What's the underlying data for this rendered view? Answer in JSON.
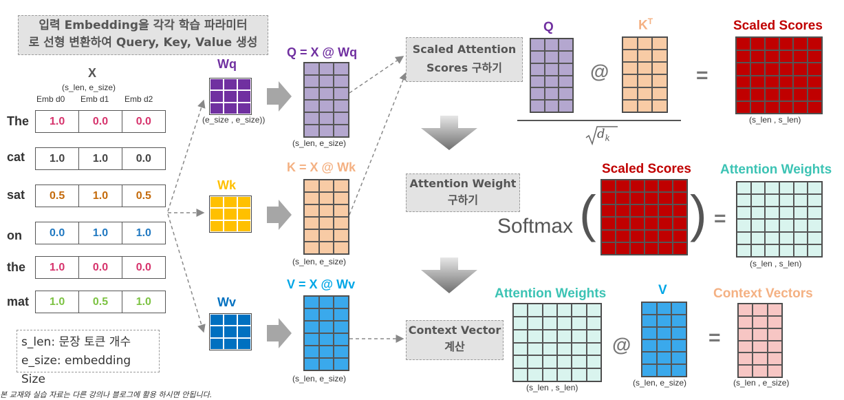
{
  "intro": {
    "line1": "입력 Embedding을 각각 학습 파라미터",
    "line2": "로 선형 변환하여 Query, Key, Value 생성"
  },
  "x_block": {
    "title": "X",
    "shape": "(s_len, e_size)",
    "headers": [
      "Emb d0",
      "Emb d1",
      "Emb d2"
    ]
  },
  "embeddings": [
    {
      "token": "The",
      "values": [
        "1.0",
        "0.0",
        "0.0"
      ],
      "color": "#d6336c"
    },
    {
      "token": "cat",
      "values": [
        "1.0",
        "1.0",
        "0.0"
      ],
      "color": "#444444"
    },
    {
      "token": "sat",
      "values": [
        "0.5",
        "1.0",
        "0.5"
      ],
      "color": "#c46a0a"
    },
    {
      "token": "on",
      "values": [
        "0.0",
        "1.0",
        "1.0"
      ],
      "color": "#1f78c1"
    },
    {
      "token": "the",
      "values": [
        "1.0",
        "0.0",
        "0.0"
      ],
      "color": "#d6336c"
    },
    {
      "token": "mat",
      "values": [
        "1.0",
        "0.5",
        "1.0"
      ],
      "color": "#7cc242"
    }
  ],
  "legend": {
    "line1": "s_len: 문장 토큰 개수",
    "line2": "e_size: embedding Size"
  },
  "weights": {
    "wq": {
      "label": "Wq",
      "shape": "(e_size , e_size))",
      "color": "#7030a0"
    },
    "wk": {
      "label": "Wk",
      "color": "#ffc000"
    },
    "wv": {
      "label": "Wv",
      "color": "#0070c0"
    }
  },
  "projections": {
    "q": {
      "label": "Q = X @ Wq",
      "shape": "(s_len, e_size)",
      "color": "#7030a0",
      "fill": "#b4a7cf"
    },
    "k": {
      "label": "K = X @ Wk",
      "shape": "(s_len, e_size)",
      "color": "#f4b183",
      "fill": "#f8cba5"
    },
    "v": {
      "label": "V = X @ Wv",
      "shape": "(s_len, e_size)",
      "color": "#00a6e6",
      "fill": "#3aa9ec"
    }
  },
  "steps": {
    "scaled": {
      "line1": "Scaled Attention",
      "line2": "Scores 구하기"
    },
    "weight": {
      "line1": "Attention Weight",
      "line2": "구하기"
    },
    "context": {
      "line1": "Context Vector",
      "line2": "계산"
    }
  },
  "formula1": {
    "q_label": "Q",
    "k_label": "K",
    "k_sup": "T",
    "at": "@",
    "eq": "=",
    "denominator": "d",
    "denominator_sub": "k",
    "result_label": "Scaled Scores",
    "result_shape": "(s_len , s_len)"
  },
  "formula2": {
    "input_label": "Scaled Scores",
    "func": "Softmax",
    "open": "(",
    "close": ")",
    "eq": "=",
    "result_label": "Attention Weights",
    "result_shape": "(s_len , s_len)"
  },
  "formula3": {
    "aw_label": "Attention Weights",
    "aw_shape": "(s_len , s_len)",
    "at": "@",
    "v_label": "V",
    "v_shape": "(s_len, e_size)",
    "eq": "=",
    "result_label": "Context Vectors",
    "result_shape": "(s_len , e_size)"
  },
  "colors": {
    "scaled_scores": "#c00000",
    "attention_weights": "#d9f4ee",
    "context": "#f7c6c4",
    "aw_label": "#3cc3b4",
    "cv_label": "#f4b183"
  },
  "footer": "본 교재와 실습 자료는 다른 강의나 블로그에 활용 하시면 안됩니다."
}
